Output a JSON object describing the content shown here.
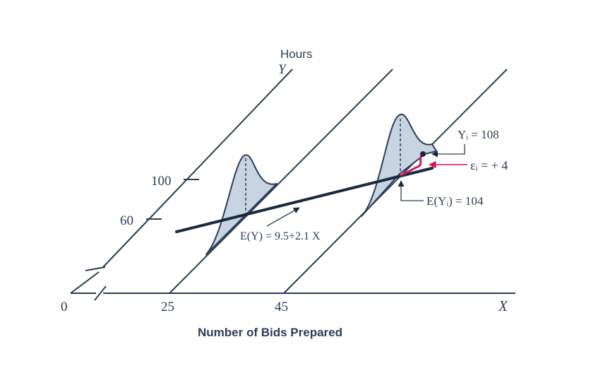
{
  "axis": {
    "y_title": "Hours",
    "y_symbol": "Y",
    "x_symbol": "X",
    "x_title": "Number of Bids Prepared",
    "origin_label": "0",
    "x_ticks": [
      "25",
      "45"
    ],
    "y_ticks": [
      "100",
      "60"
    ]
  },
  "regression": {
    "label": "E(Y) = 9.5+2.1 X"
  },
  "annotations": {
    "observed": "Yᵢ = 108",
    "error": "εᵢ = + 4",
    "expected": "E(Yᵢ) = 104"
  },
  "colors": {
    "line": "#1b2a3f",
    "curve_fill": "#c7d5e3",
    "curve_stroke": "#2c3e54",
    "error": "#d4145a"
  }
}
